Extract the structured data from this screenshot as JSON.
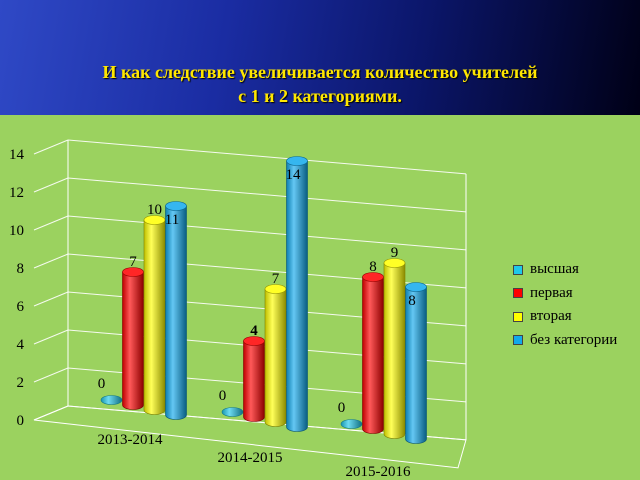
{
  "title_lines": [
    "И как следствие  увеличивается  количество учителей",
    "с 1 и 2  категориями."
  ],
  "chart_data": {
    "type": "bar",
    "categories": [
      "2013-2014",
      "2014-2015",
      "2015-2016"
    ],
    "series": [
      {
        "name": "высшая",
        "values": [
          0,
          0,
          0
        ],
        "color": "#1ec8ea"
      },
      {
        "name": "первая",
        "values": [
          7,
          4,
          8
        ],
        "color": "#ff0000"
      },
      {
        "name": "вторая",
        "values": [
          10,
          7,
          9
        ],
        "color": "#ffff00"
      },
      {
        "name": "без категории",
        "values": [
          11,
          14,
          8
        ],
        "color": "#11a9ec"
      }
    ],
    "value_labels": [
      "0",
      "7",
      "10",
      "11",
      "0",
      "4",
      "7",
      "14",
      "0",
      "8",
      "9",
      "8"
    ],
    "y_ticks": [
      "0",
      "2",
      "4",
      "6",
      "8",
      "10",
      "12",
      "14"
    ],
    "ylim": [
      0,
      14
    ],
    "grid": true,
    "legend_position": "right"
  }
}
